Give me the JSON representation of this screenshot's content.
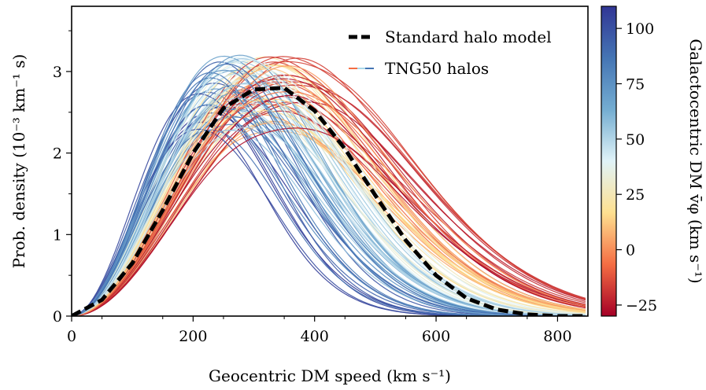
{
  "chart_data": {
    "type": "line",
    "xlabel": "Geocentric DM speed (km s⁻¹)",
    "ylabel": "Prob. density (10⁻³ km⁻¹ s)",
    "xlim": [
      0,
      850
    ],
    "ylim": [
      0,
      3.8
    ],
    "x_ticks": [
      "0",
      "200",
      "400",
      "600",
      "800"
    ],
    "y_ticks": [
      "0",
      "1",
      "2",
      "3"
    ],
    "legend": {
      "placement": "top-right",
      "entries": [
        "Standard halo model",
        "TNG50 halos"
      ]
    },
    "series": [
      {
        "name": "Standard halo model",
        "style": "dashed",
        "color": "#000000",
        "x": [
          0,
          50,
          100,
          150,
          200,
          250,
          300,
          350,
          400,
          450,
          500,
          550,
          600,
          650,
          700,
          750,
          800,
          850
        ],
        "y": [
          0.0,
          0.2,
          0.65,
          1.3,
          2.0,
          2.55,
          2.78,
          2.8,
          2.52,
          2.05,
          1.48,
          0.93,
          0.5,
          0.22,
          0.08,
          0.02,
          0.0,
          0.0
        ]
      }
    ],
    "tng50_halos": {
      "name": "TNG50 halos",
      "count": 98,
      "peak_speed_range": [
        215,
        390
      ],
      "peak_height_range": [
        2.3,
        3.2
      ],
      "colored_by": "Galactocentric DM v̄_φ"
    },
    "colorbar": {
      "label": "Galactocentric DM v̄φ (km s⁻¹)",
      "range": [
        -30,
        110
      ],
      "ticks": [
        "−25",
        "0",
        "25",
        "50",
        "75",
        "100"
      ],
      "colors": [
        "#a50026",
        "#f46d43",
        "#fee090",
        "#e0f3f8",
        "#74add1",
        "#4575b4",
        "#313695"
      ]
    }
  }
}
